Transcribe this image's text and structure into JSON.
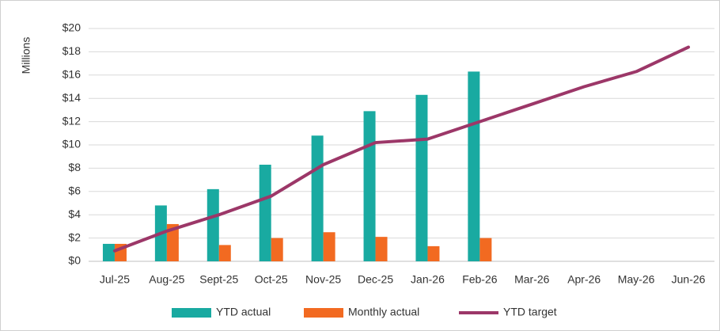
{
  "chart_data": {
    "type": "bar-line",
    "y_axis_label": "Millions",
    "categories": [
      "Jul-25",
      "Aug-25",
      "Sept-25",
      "Oct-25",
      "Nov-25",
      "Dec-25",
      "Jan-26",
      "Feb-26",
      "Mar-26",
      "Apr-26",
      "May-26",
      "Jun-26"
    ],
    "series": [
      {
        "name": "YTD actual",
        "type": "bar",
        "color": "#19aaa1",
        "values": [
          1.5,
          4.8,
          6.2,
          8.3,
          10.8,
          12.9,
          14.3,
          16.3,
          null,
          null,
          null,
          null
        ]
      },
      {
        "name": "Monthly actual",
        "type": "bar",
        "color": "#f26a21",
        "values": [
          1.5,
          3.2,
          1.4,
          2.0,
          2.5,
          2.1,
          1.3,
          2.0,
          null,
          null,
          null,
          null
        ]
      },
      {
        "name": "YTD target",
        "type": "line",
        "color": "#9c3768",
        "values": [
          0.9,
          2.6,
          4.0,
          5.6,
          8.3,
          10.2,
          10.5,
          12.0,
          13.5,
          15.0,
          16.3,
          18.4
        ]
      }
    ],
    "ylim": [
      0,
      20
    ],
    "yticks": [
      {
        "value": 0,
        "label": "$0"
      },
      {
        "value": 2,
        "label": "$2"
      },
      {
        "value": 4,
        "label": "$4"
      },
      {
        "value": 6,
        "label": "$6"
      },
      {
        "value": 8,
        "label": "$8"
      },
      {
        "value": 10,
        "label": "$10"
      },
      {
        "value": 12,
        "label": "$12"
      },
      {
        "value": 14,
        "label": "$14"
      },
      {
        "value": 16,
        "label": "$16"
      },
      {
        "value": 18,
        "label": "$18"
      },
      {
        "value": 20,
        "label": "$20"
      }
    ],
    "grid": true,
    "legend": "bottom"
  }
}
